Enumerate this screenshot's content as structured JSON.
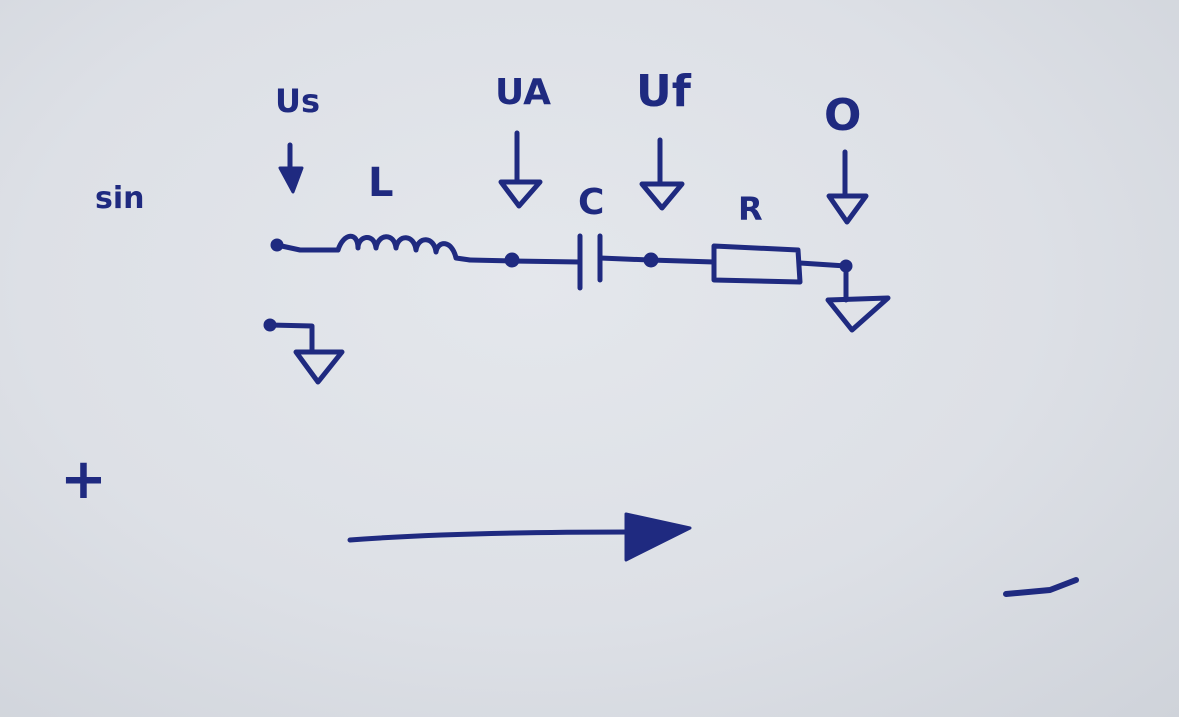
{
  "labels": {
    "source_type": "sin",
    "probe_source": "Us",
    "probe_a": "UA",
    "probe_f": "Uf",
    "probe_out": "O",
    "inductor": "L",
    "capacitor": "C",
    "resistor": "R",
    "plus": "+",
    "minus": "—"
  },
  "colors": {
    "ink": "#1f2a80",
    "paper": "#dde0e6"
  }
}
